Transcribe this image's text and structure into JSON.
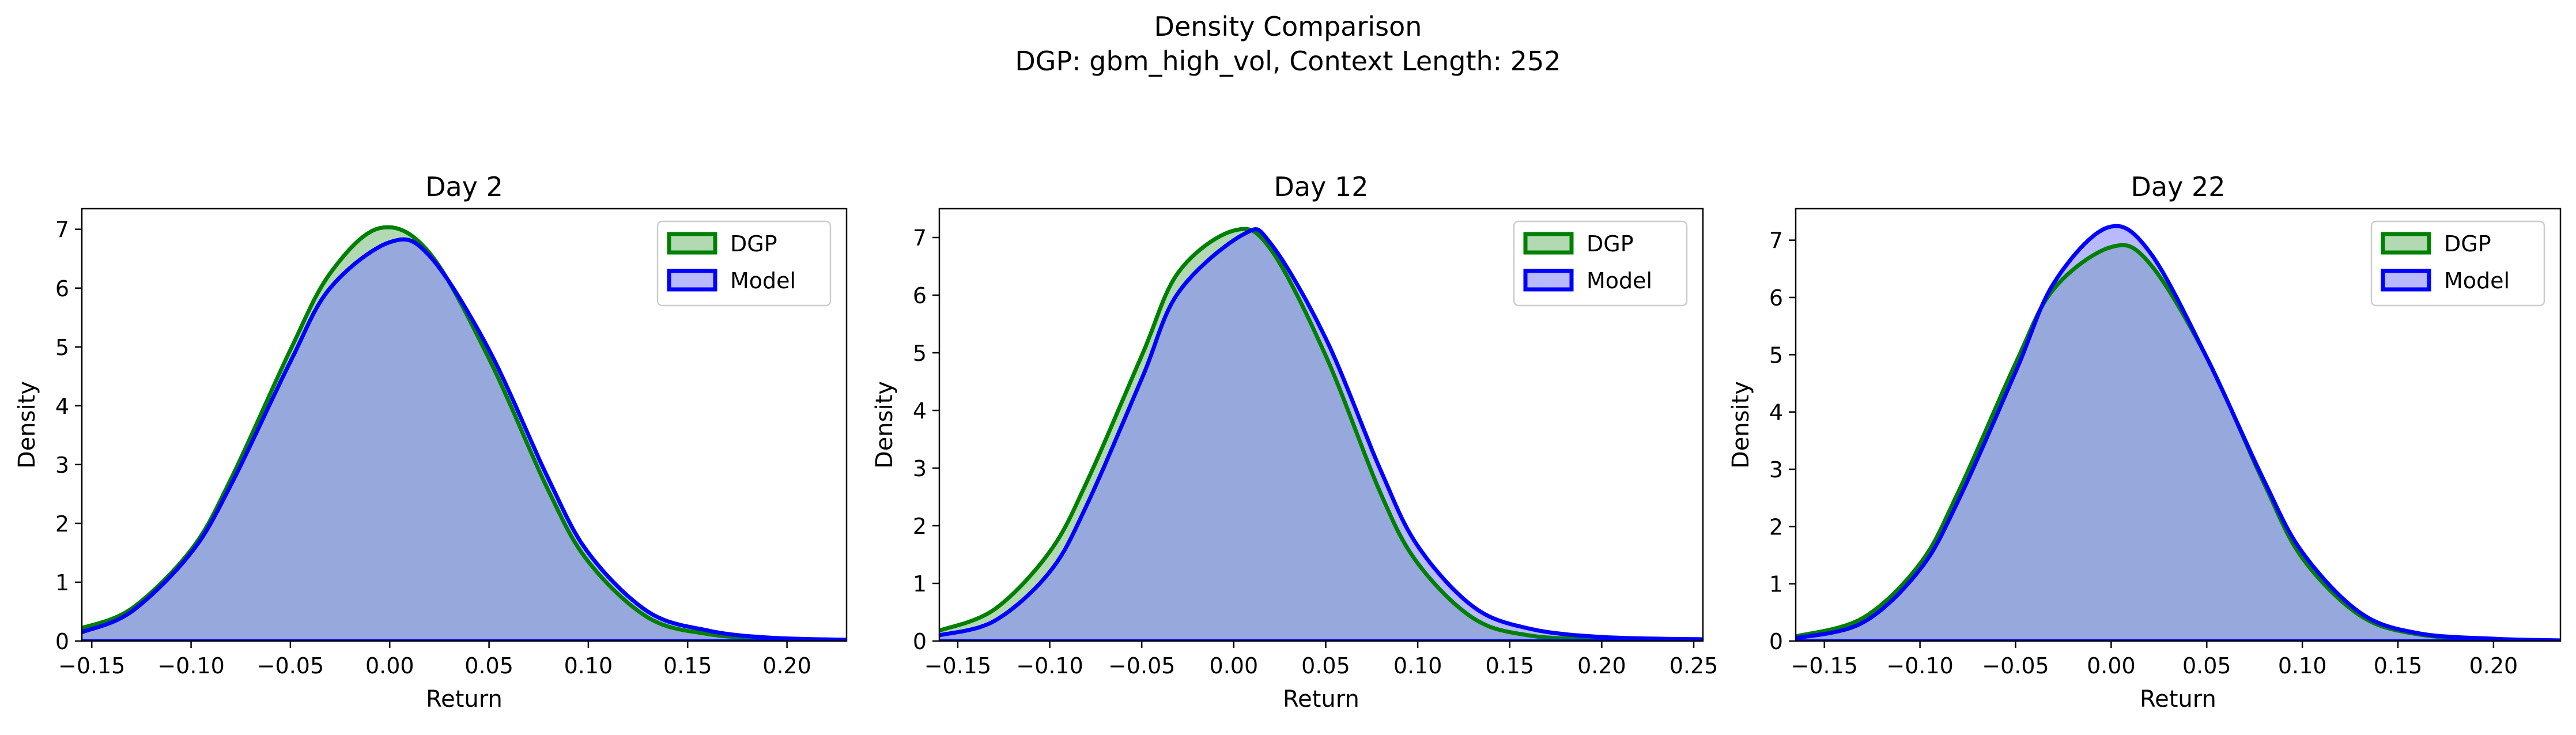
{
  "figure": {
    "suptitle_line1": "Density Comparison",
    "suptitle_line2": "DGP: gbm_high_vol, Context Length: 252"
  },
  "colors": {
    "dgp_line": "#008000",
    "dgp_fill": "#7fbf7f",
    "model_line": "#0000ff",
    "model_fill": "#8080ff",
    "overlap_fill": "#7b96c7"
  },
  "chart_data": [
    {
      "type": "area",
      "title": "Day 2",
      "xlabel": "Return",
      "ylabel": "Density",
      "xlim": [
        -0.155,
        0.23
      ],
      "ylim": [
        0,
        7.35
      ],
      "xticks": [
        -0.15,
        -0.1,
        -0.05,
        0.0,
        0.05,
        0.1,
        0.15,
        0.2
      ],
      "xtick_labels": [
        "−0.15",
        "−0.10",
        "−0.05",
        "0.00",
        "0.05",
        "0.10",
        "0.15",
        "0.20"
      ],
      "yticks": [
        0,
        1,
        2,
        3,
        4,
        5,
        6,
        7
      ],
      "ytick_labels": [
        "0",
        "1",
        "2",
        "3",
        "4",
        "5",
        "6",
        "7"
      ],
      "legend_position": "top-right",
      "grid": false,
      "series": [
        {
          "name": "DGP",
          "x": [
            -0.155,
            -0.13,
            -0.1,
            -0.08,
            -0.05,
            -0.03,
            -0.005,
            0.02,
            0.05,
            0.08,
            0.1,
            0.13,
            0.16,
            0.19,
            0.23
          ],
          "y": [
            0.22,
            0.55,
            1.55,
            2.75,
            4.95,
            6.25,
            7.02,
            6.6,
            4.8,
            2.55,
            1.35,
            0.4,
            0.12,
            0.05,
            0.02
          ]
        },
        {
          "name": "Model",
          "x": [
            -0.155,
            -0.13,
            -0.1,
            -0.08,
            -0.05,
            -0.03,
            0.0,
            0.02,
            0.05,
            0.08,
            0.1,
            0.13,
            0.16,
            0.19,
            0.23
          ],
          "y": [
            0.15,
            0.5,
            1.5,
            2.65,
            4.75,
            6.0,
            6.78,
            6.55,
            4.95,
            2.75,
            1.5,
            0.5,
            0.18,
            0.06,
            0.02
          ]
        }
      ]
    },
    {
      "type": "area",
      "title": "Day 12",
      "xlabel": "Return",
      "ylabel": "Density",
      "xlim": [
        -0.16,
        0.255
      ],
      "ylim": [
        0,
        7.5
      ],
      "xticks": [
        -0.15,
        -0.1,
        -0.05,
        0.0,
        0.05,
        0.1,
        0.15,
        0.2,
        0.25
      ],
      "xtick_labels": [
        "−0.15",
        "−0.10",
        "−0.05",
        "0.00",
        "0.05",
        "0.10",
        "0.15",
        "0.20",
        "0.25"
      ],
      "yticks": [
        0,
        1,
        2,
        3,
        4,
        5,
        6,
        7
      ],
      "ytick_labels": [
        "0",
        "1",
        "2",
        "3",
        "4",
        "5",
        "6",
        "7"
      ],
      "legend_position": "top-right",
      "grid": false,
      "series": [
        {
          "name": "DGP",
          "x": [
            -0.16,
            -0.13,
            -0.1,
            -0.08,
            -0.05,
            -0.03,
            0.0,
            0.02,
            0.05,
            0.08,
            0.1,
            0.13,
            0.16,
            0.2,
            0.255
          ],
          "y": [
            0.18,
            0.55,
            1.55,
            2.75,
            4.95,
            6.4,
            7.12,
            6.8,
            4.95,
            2.55,
            1.35,
            0.4,
            0.1,
            0.03,
            0.01
          ]
        },
        {
          "name": "Model",
          "x": [
            -0.16,
            -0.13,
            -0.1,
            -0.08,
            -0.05,
            -0.03,
            0.005,
            0.02,
            0.05,
            0.08,
            0.1,
            0.13,
            0.16,
            0.2,
            0.255
          ],
          "y": [
            0.1,
            0.35,
            1.2,
            2.35,
            4.55,
            6.05,
            7.05,
            6.9,
            5.25,
            2.95,
            1.65,
            0.6,
            0.22,
            0.07,
            0.03
          ]
        }
      ]
    },
    {
      "type": "area",
      "title": "Day 22",
      "xlabel": "Return",
      "ylabel": "Density",
      "xlim": [
        -0.165,
        0.235
      ],
      "ylim": [
        0,
        7.55
      ],
      "xticks": [
        -0.15,
        -0.1,
        -0.05,
        0.0,
        0.05,
        0.1,
        0.15,
        0.2
      ],
      "xtick_labels": [
        "−0.15",
        "−0.10",
        "−0.05",
        "0.00",
        "0.05",
        "0.10",
        "0.15",
        "0.20"
      ],
      "yticks": [
        0,
        1,
        2,
        3,
        4,
        5,
        6,
        7
      ],
      "ytick_labels": [
        "0",
        "1",
        "2",
        "3",
        "4",
        "5",
        "6",
        "7"
      ],
      "legend_position": "top-right",
      "grid": false,
      "series": [
        {
          "name": "DGP",
          "x": [
            -0.165,
            -0.13,
            -0.1,
            -0.08,
            -0.05,
            -0.03,
            0.0,
            0.02,
            0.05,
            0.08,
            0.1,
            0.13,
            0.16,
            0.2,
            0.235
          ],
          "y": [
            0.08,
            0.4,
            1.35,
            2.6,
            4.85,
            6.15,
            6.88,
            6.6,
            4.95,
            2.75,
            1.45,
            0.45,
            0.12,
            0.03,
            0.01
          ]
        },
        {
          "name": "Model",
          "x": [
            -0.165,
            -0.13,
            -0.1,
            -0.08,
            -0.05,
            -0.03,
            -0.002,
            0.02,
            0.05,
            0.08,
            0.1,
            0.13,
            0.16,
            0.2,
            0.235
          ],
          "y": [
            0.05,
            0.32,
            1.25,
            2.45,
            4.7,
            6.25,
            7.22,
            6.8,
            4.95,
            2.8,
            1.55,
            0.5,
            0.14,
            0.04,
            0.01
          ]
        }
      ]
    }
  ]
}
